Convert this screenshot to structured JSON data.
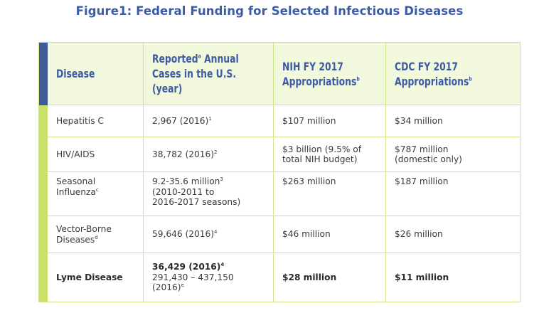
{
  "title": "Figure1: Federal Funding for Selected Infectious Diseases",
  "header": {
    "disease": "Disease",
    "cases_line1": "Reported",
    "cases_sup": "a",
    "cases_line1b": " Annual",
    "cases_line2": "Cases in the U.S.",
    "cases_line3": "(year)",
    "nih_line1": "NIH FY 2017",
    "nih_line2": "Appropriations",
    "nih_sup": "b",
    "cdc_line1": "CDC FY 2017",
    "cdc_line2": "Appropriations",
    "cdc_sup": "b"
  },
  "rows": [
    {
      "disease": "Hepatitis C",
      "cases": "2,967 (2016)",
      "cases_sup": "1",
      "nih": "$107 million",
      "cdc": "$34 million"
    },
    {
      "disease": "HIV/AIDS",
      "cases": "38,782 (2016)",
      "cases_sup": "2",
      "nih_line1": "$3 billion (9.5% of",
      "nih_line2": "total NIH budget)",
      "cdc_line1": "$787 million",
      "cdc_line2": "(domestic only)"
    },
    {
      "disease_line1": "Seasonal",
      "disease_line2": "Influenza",
      "disease_sup": "c",
      "cases_line1": "9.2-35.6 million",
      "cases_sup": "3",
      "cases_line2": "(2010-2011 to",
      "cases_line3": "2016-2017 seasons)",
      "nih": "$263 million",
      "cdc": "$187 million"
    },
    {
      "disease_line1": "Vector-Borne",
      "disease_line2": "Diseases",
      "disease_sup": "d",
      "cases": "59,646 (2016)",
      "cases_sup": "4",
      "nih": "$46 million",
      "cdc": "$26 million"
    },
    {
      "disease": "Lyme Disease",
      "cases_line1": "36,429 (2016)",
      "cases_sup1": "4",
      "cases_line2": "291,430 – 437,150",
      "cases_line3": "(2016)",
      "cases_sup2": "e",
      "nih": "$28 million",
      "cdc": "$11 million"
    }
  ],
  "colors": {
    "title": "#3b5aa8",
    "header_text": "#3d5aa6",
    "header_accent": "#3d5a99",
    "body_accent": "#c9e06a",
    "grid": "#cfe48b",
    "header_bg": "#f2f8dc"
  }
}
